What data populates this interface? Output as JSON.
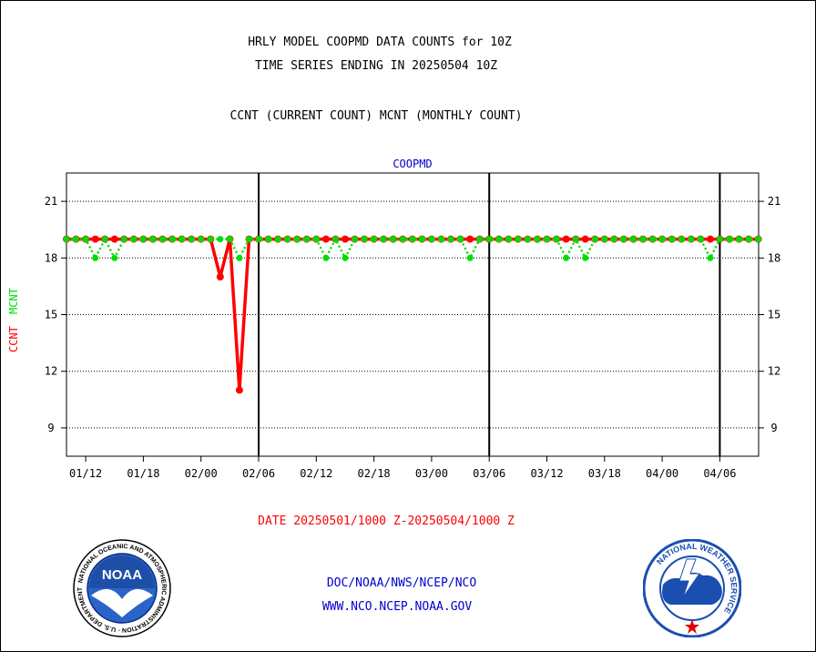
{
  "header": {
    "title_line1": "HRLY MODEL COOPMD DATA COUNTS for 10Z",
    "title_line2": "TIME SERIES ENDING IN 20250504 10Z",
    "subtitle": "CCNT (CURRENT COUNT) MCNT (MONTHLY COUNT)"
  },
  "footer": {
    "date_range": "DATE 20250501/1000 Z-20250504/1000 Z",
    "org_path": "DOC/NOAA/NWS/NCEP/NCO",
    "website": "WWW.NCO.NCEP.NOAA.GOV"
  },
  "logos": {
    "noaa_text": "NOAA",
    "noaa_ring": "NATIONAL OCEANIC AND ATMOSPHERIC ADMINISTRATION · U.S. DEPARTMENT OF COMMERCE",
    "nws_ring": "NATIONAL WEATHER SERVICE"
  },
  "colors": {
    "ccnt": "#ff0000",
    "mcnt": "#00dd00",
    "station": "#0000cc",
    "footer_link": "#0000cc",
    "date_text": "#ff0000"
  },
  "chart_data": {
    "type": "line",
    "title": "COOPMD",
    "xlabel": "",
    "ylabel_series": [
      "CCNT",
      "MCNT"
    ],
    "ylim": [
      7.5,
      22.5
    ],
    "yticks": [
      9,
      12,
      15,
      18,
      21
    ],
    "xticks": [
      "01/12",
      "01/18",
      "02/00",
      "02/06",
      "02/12",
      "02/18",
      "03/00",
      "03/06",
      "03/12",
      "03/18",
      "04/00",
      "04/06"
    ],
    "day_boundaries": [
      "02/06",
      "03/06",
      "04/06"
    ],
    "grid": true,
    "x": [
      "01/10",
      "01/11",
      "01/12",
      "01/13",
      "01/14",
      "01/15",
      "01/16",
      "01/17",
      "01/18",
      "01/19",
      "01/20",
      "01/21",
      "01/22",
      "01/23",
      "02/00",
      "02/01",
      "02/02",
      "02/03",
      "02/04",
      "02/05",
      "02/06",
      "02/07",
      "02/08",
      "02/09",
      "02/10",
      "02/11",
      "02/12",
      "02/13",
      "02/14",
      "02/15",
      "02/16",
      "02/17",
      "02/18",
      "02/19",
      "02/20",
      "02/21",
      "02/22",
      "02/23",
      "03/00",
      "03/01",
      "03/02",
      "03/03",
      "03/04",
      "03/05",
      "03/06",
      "03/07",
      "03/08",
      "03/09",
      "03/10",
      "03/11",
      "03/12",
      "03/13",
      "03/14",
      "03/15",
      "03/16",
      "03/17",
      "03/18",
      "03/19",
      "03/20",
      "03/21",
      "03/22",
      "03/23",
      "04/00",
      "04/01",
      "04/02",
      "04/03",
      "04/04",
      "04/05",
      "04/06",
      "04/07",
      "04/08",
      "04/09",
      "04/10"
    ],
    "series": [
      {
        "name": "CCNT",
        "values": [
          19,
          19,
          19,
          19,
          19,
          19,
          19,
          19,
          19,
          19,
          19,
          19,
          19,
          19,
          19,
          19,
          17,
          19,
          11,
          19,
          19,
          19,
          19,
          19,
          19,
          19,
          19,
          19,
          19,
          19,
          19,
          19,
          19,
          19,
          19,
          19,
          19,
          19,
          19,
          19,
          19,
          19,
          19,
          19,
          19,
          19,
          19,
          19,
          19,
          19,
          19,
          19,
          19,
          19,
          19,
          19,
          19,
          19,
          19,
          19,
          19,
          19,
          19,
          19,
          19,
          19,
          19,
          19,
          19,
          19,
          19,
          19,
          19
        ]
      },
      {
        "name": "MCNT",
        "values": [
          19,
          19,
          19,
          18,
          19,
          18,
          19,
          19,
          19,
          19,
          19,
          19,
          19,
          19,
          19,
          19,
          19,
          19,
          18,
          19,
          19,
          19,
          19,
          19,
          19,
          19,
          19,
          18,
          19,
          18,
          19,
          19,
          19,
          19,
          19,
          19,
          19,
          19,
          19,
          19,
          19,
          19,
          18,
          19,
          19,
          19,
          19,
          19,
          19,
          19,
          19,
          19,
          18,
          19,
          18,
          19,
          19,
          19,
          19,
          19,
          19,
          19,
          19,
          19,
          19,
          19,
          19,
          18,
          19,
          19,
          19,
          19,
          19
        ]
      }
    ]
  }
}
